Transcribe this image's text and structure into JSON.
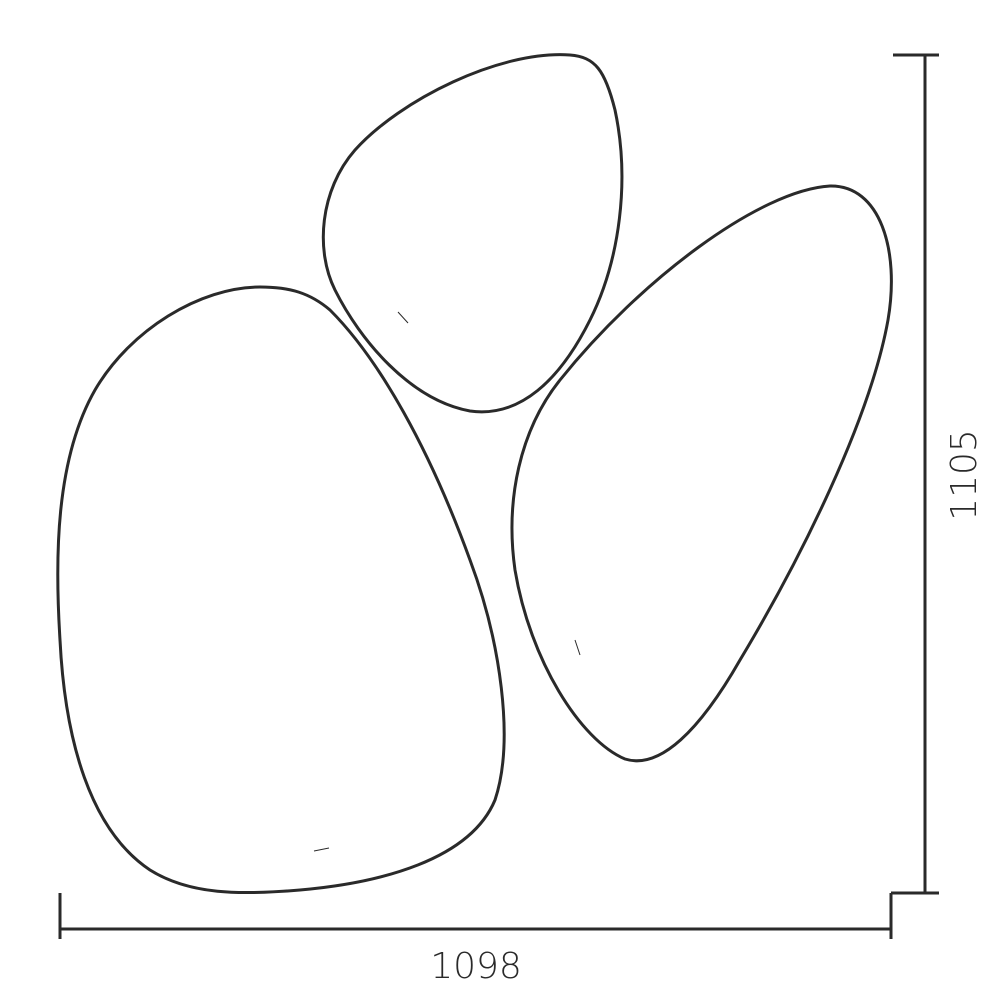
{
  "dimensions": {
    "width_label": "1098",
    "height_label": "1105"
  },
  "shapes": [
    "large-left-mirror",
    "small-top-mirror",
    "right-mirror"
  ],
  "colors": {
    "stroke": "#2a2a2a",
    "background": "#ffffff"
  }
}
